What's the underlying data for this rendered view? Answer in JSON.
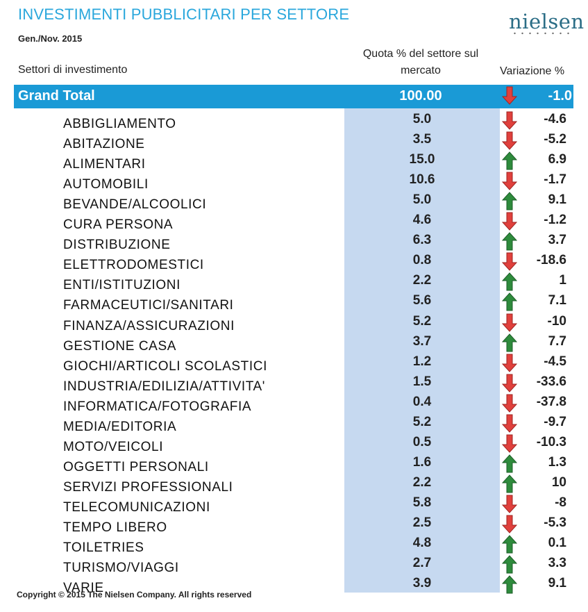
{
  "header": {
    "title": "INVESTIMENTI PUBBLICITARI PER SETTORE",
    "period": "Gen./Nov. 2015",
    "logo_text": "nielsen"
  },
  "columns": {
    "sector": "Settori di investimento",
    "share": "Quota % del settore sul mercato",
    "variation": "Variazione %"
  },
  "colors": {
    "title": "#2aa7dc",
    "grand_total_bar": "#1a9ad6",
    "share_column": "#c6d9f0",
    "arrow_up": "#2e8b3c",
    "arrow_down": "#e0403c"
  },
  "grand_total": {
    "label": "Grand Total",
    "share": "100.00",
    "variation": "-1.0",
    "trend": "down"
  },
  "rows": [
    {
      "sector": "ABBIGLIAMENTO",
      "share": "5.0",
      "variation": "-4.6",
      "trend": "down"
    },
    {
      "sector": "ABITAZIONE",
      "share": "3.5",
      "variation": "-5.2",
      "trend": "down"
    },
    {
      "sector": "ALIMENTARI",
      "share": "15.0",
      "variation": "6.9",
      "trend": "up"
    },
    {
      "sector": "AUTOMOBILI",
      "share": "10.6",
      "variation": "-1.7",
      "trend": "down"
    },
    {
      "sector": "BEVANDE/ALCOOLICI",
      "share": "5.0",
      "variation": "9.1",
      "trend": "up"
    },
    {
      "sector": "CURA PERSONA",
      "share": "4.6",
      "variation": "-1.2",
      "trend": "down"
    },
    {
      "sector": "DISTRIBUZIONE",
      "share": "6.3",
      "variation": "3.7",
      "trend": "up"
    },
    {
      "sector": "ELETTRODOMESTICI",
      "share": "0.8",
      "variation": "-18.6",
      "trend": "down"
    },
    {
      "sector": "ENTI/ISTITUZIONI",
      "share": "2.2",
      "variation": "1",
      "trend": "up"
    },
    {
      "sector": "FARMACEUTICI/SANITARI",
      "share": "5.6",
      "variation": "7.1",
      "trend": "up"
    },
    {
      "sector": "FINANZA/ASSICURAZIONI",
      "share": "5.2",
      "variation": "-10",
      "trend": "down"
    },
    {
      "sector": "GESTIONE CASA",
      "share": "3.7",
      "variation": "7.7",
      "trend": "up"
    },
    {
      "sector": "GIOCHI/ARTICOLI SCOLASTICI",
      "share": "1.2",
      "variation": "-4.5",
      "trend": "down"
    },
    {
      "sector": "INDUSTRIA/EDILIZIA/ATTIVITA'",
      "share": "1.5",
      "variation": "-33.6",
      "trend": "down"
    },
    {
      "sector": "INFORMATICA/FOTOGRAFIA",
      "share": "0.4",
      "variation": "-37.8",
      "trend": "down"
    },
    {
      "sector": "MEDIA/EDITORIA",
      "share": "5.2",
      "variation": "-9.7",
      "trend": "down"
    },
    {
      "sector": "MOTO/VEICOLI",
      "share": "0.5",
      "variation": "-10.3",
      "trend": "down"
    },
    {
      "sector": "OGGETTI PERSONALI",
      "share": "1.6",
      "variation": "1.3",
      "trend": "up"
    },
    {
      "sector": "SERVIZI PROFESSIONALI",
      "share": "2.2",
      "variation": "10",
      "trend": "up"
    },
    {
      "sector": "TELECOMUNICAZIONI",
      "share": "5.8",
      "variation": "-8",
      "trend": "down"
    },
    {
      "sector": "TEMPO LIBERO",
      "share": "2.5",
      "variation": "-5.3",
      "trend": "down"
    },
    {
      "sector": "TOILETRIES",
      "share": "4.8",
      "variation": "0.1",
      "trend": "up"
    },
    {
      "sector": "TURISMO/VIAGGI",
      "share": "2.7",
      "variation": "3.3",
      "trend": "up"
    },
    {
      "sector": "VARIE",
      "share": "3.9",
      "variation": "9.1",
      "trend": "up"
    }
  ],
  "footer": {
    "copyright": "Copyright © 2015 The Nielsen Company. All rights reserved"
  }
}
